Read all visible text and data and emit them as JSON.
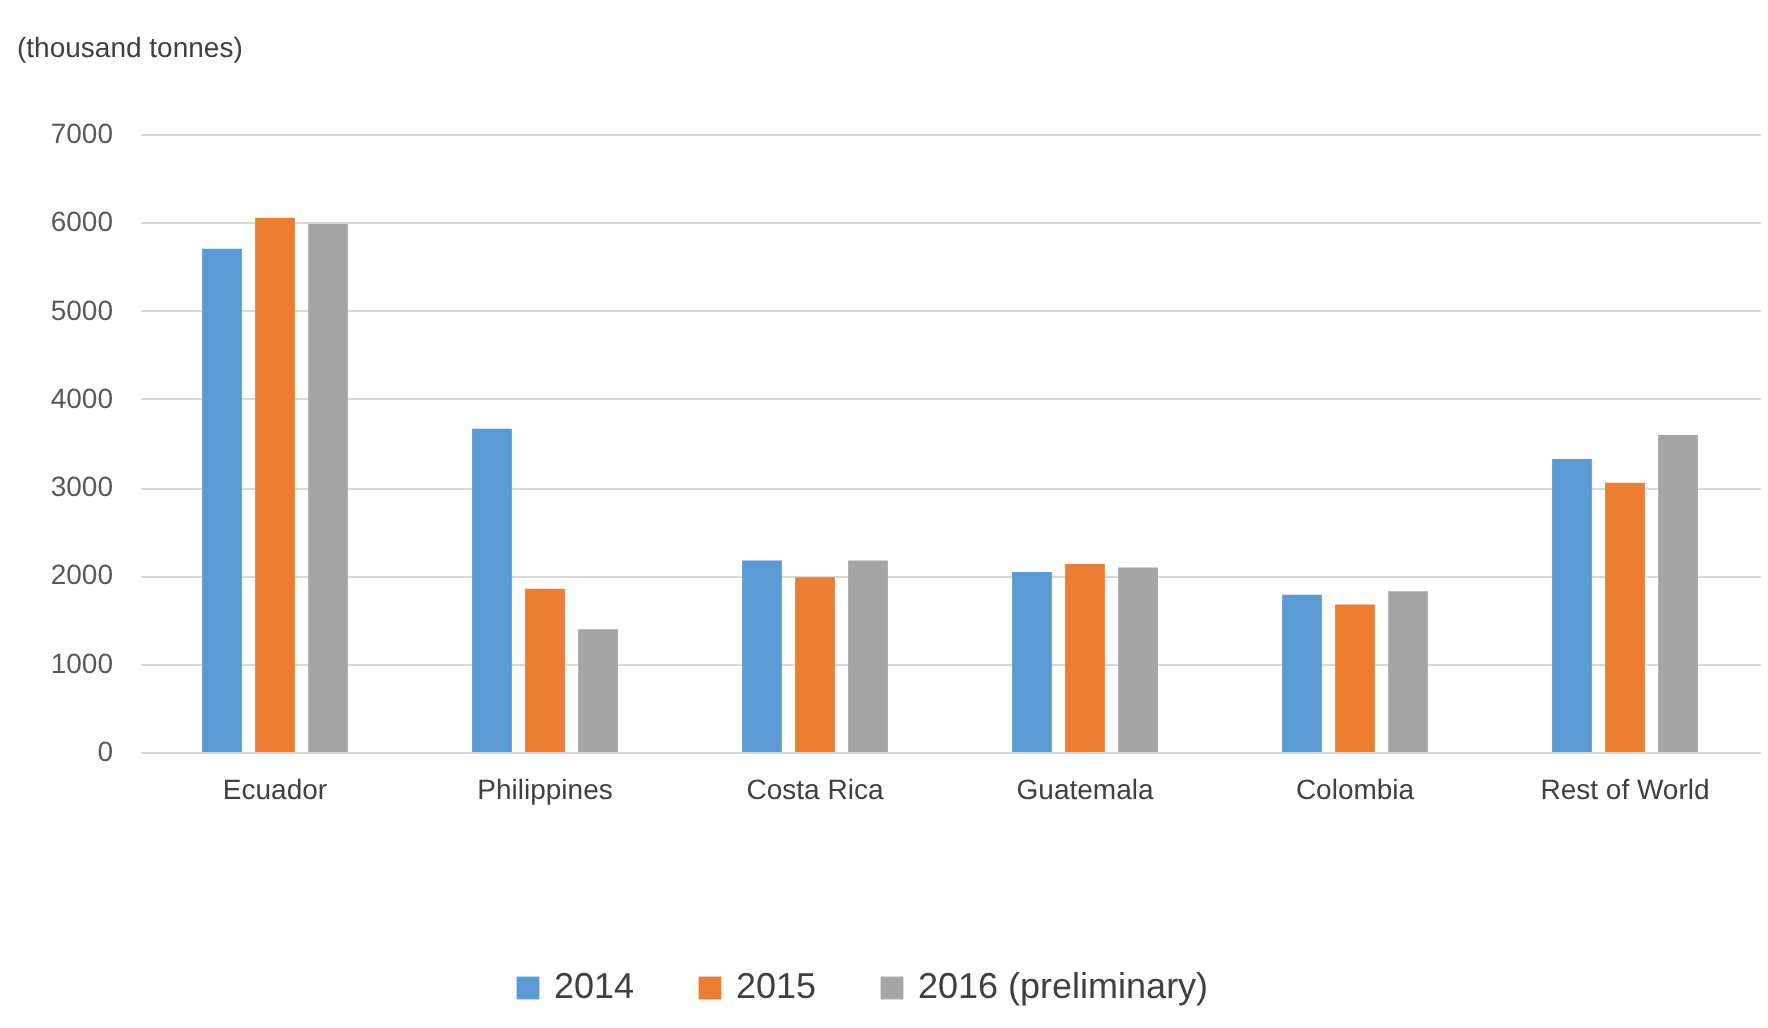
{
  "chart_data": {
    "type": "bar",
    "ylabel": "(thousand tonnes)",
    "categories": [
      "Ecuador",
      "Philippines",
      "Costa Rica",
      "Guatemala",
      "Colombia",
      "Rest of World"
    ],
    "series": [
      {
        "name": "2014",
        "color": "#5b9bd5",
        "values": [
          5700,
          3660,
          2170,
          2040,
          1780,
          3320
        ]
      },
      {
        "name": "2015",
        "color": "#ed7d31",
        "values": [
          6050,
          1850,
          1980,
          2130,
          1670,
          3050
        ]
      },
      {
        "name": "2016 (preliminary)",
        "color": "#a5a5a5",
        "values": [
          5980,
          1390,
          2170,
          2090,
          1820,
          3590
        ]
      }
    ],
    "ylim": [
      0,
      7000
    ],
    "yticks": [
      0,
      1000,
      2000,
      3000,
      4000,
      5000,
      6000,
      7000
    ],
    "grid": "y",
    "legend": "bottom"
  }
}
